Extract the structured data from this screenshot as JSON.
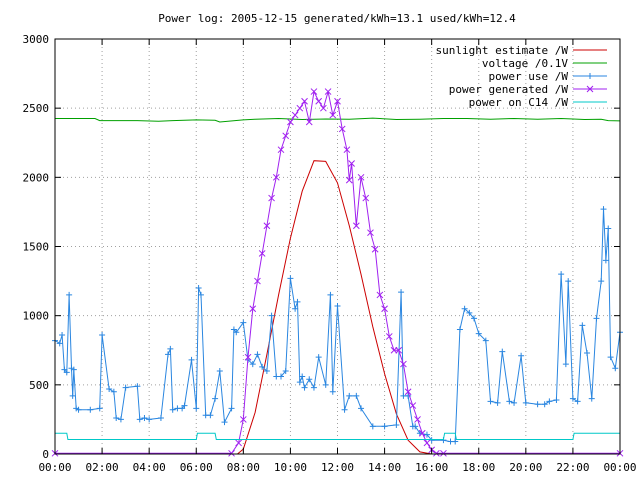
{
  "chart_data": {
    "type": "line",
    "title": "Power log: 2005-12-15 generated/kWh=13.1 used/kWh=12.4",
    "xlabel": "",
    "ylabel": "",
    "xlim": [
      0,
      24
    ],
    "ylim": [
      0,
      3000
    ],
    "grid": true,
    "legend_position": "top-right",
    "x_ticks": [
      "00:00",
      "02:00",
      "04:00",
      "06:00",
      "08:00",
      "10:00",
      "12:00",
      "14:00",
      "16:00",
      "18:00",
      "20:00",
      "22:00",
      "00:00"
    ],
    "y_ticks": [
      0,
      500,
      1000,
      1500,
      2000,
      2500,
      3000
    ],
    "series": [
      {
        "name": "sunlight estimate /W",
        "color": "#cc0000",
        "marker": "none",
        "x": [
          0,
          7.75,
          8.0,
          8.5,
          9.0,
          9.5,
          10.0,
          10.5,
          11.0,
          11.5,
          12.0,
          12.5,
          13.0,
          13.5,
          14.0,
          14.5,
          15.0,
          15.5,
          16.0,
          24
        ],
        "y": [
          0,
          0,
          35,
          300,
          720,
          1150,
          1560,
          1900,
          2120,
          2115,
          1960,
          1650,
          1300,
          920,
          580,
          290,
          100,
          15,
          0,
          0
        ]
      },
      {
        "name": "voltage /0.1V",
        "color": "#00a000",
        "marker": "none",
        "x": [
          0,
          1.7,
          1.9,
          3.5,
          4.4,
          5.0,
          6.0,
          6.8,
          7.0,
          8.0,
          8.5,
          9.5,
          10.5,
          11.5,
          12.5,
          13.5,
          14.5,
          15.5,
          16.5,
          17.5,
          18.5,
          19.5,
          20.5,
          21.5,
          22.5,
          23.2,
          23.5,
          24
        ],
        "y": [
          2425,
          2425,
          2410,
          2410,
          2405,
          2410,
          2415,
          2412,
          2400,
          2415,
          2420,
          2425,
          2418,
          2422,
          2420,
          2428,
          2418,
          2420,
          2425,
          2425,
          2420,
          2425,
          2420,
          2425,
          2418,
          2420,
          2410,
          2408
        ]
      },
      {
        "name": "power use /W",
        "color": "#2a86e0",
        "marker": "plus",
        "x": [
          0.0,
          0.2,
          0.3,
          0.4,
          0.5,
          0.6,
          0.7,
          0.75,
          0.8,
          0.9,
          1.0,
          1.5,
          1.9,
          2.0,
          2.3,
          2.5,
          2.6,
          2.8,
          3.0,
          3.5,
          3.6,
          3.8,
          4.0,
          4.5,
          4.8,
          4.9,
          5.0,
          5.2,
          5.4,
          5.5,
          5.8,
          6.0,
          6.1,
          6.2,
          6.4,
          6.6,
          6.8,
          7.0,
          7.2,
          7.5,
          7.6,
          7.7,
          8.0,
          8.2,
          8.4,
          8.6,
          8.8,
          9.0,
          9.2,
          9.4,
          9.6,
          9.8,
          10.0,
          10.2,
          10.3,
          10.4,
          10.5,
          10.6,
          10.8,
          11.0,
          11.2,
          11.5,
          11.7,
          11.8,
          12.0,
          12.3,
          12.5,
          12.8,
          13.0,
          13.5,
          14.0,
          14.5,
          14.7,
          14.8,
          15.0,
          15.2,
          15.3,
          15.5,
          15.8,
          16.0,
          16.5,
          16.8,
          17.0,
          17.2,
          17.4,
          17.6,
          17.8,
          18.0,
          18.3,
          18.5,
          18.8,
          19.0,
          19.3,
          19.5,
          19.8,
          20.0,
          20.5,
          20.8,
          21.0,
          21.3,
          21.5,
          21.7,
          21.8,
          22.0,
          22.2,
          22.4,
          22.6,
          22.8,
          23.0,
          23.2,
          23.3,
          23.4,
          23.5,
          23.6,
          23.8,
          24.0
        ],
        "y": [
          820,
          800,
          860,
          610,
          590,
          1150,
          620,
          420,
          610,
          330,
          320,
          320,
          330,
          860,
          470,
          450,
          260,
          250,
          480,
          490,
          250,
          260,
          250,
          260,
          720,
          760,
          320,
          330,
          330,
          350,
          680,
          330,
          1200,
          1150,
          280,
          280,
          400,
          600,
          230,
          330,
          900,
          880,
          950,
          680,
          650,
          720,
          630,
          600,
          1000,
          560,
          560,
          600,
          1270,
          1050,
          1100,
          520,
          560,
          480,
          540,
          480,
          700,
          500,
          1150,
          450,
          1070,
          320,
          420,
          420,
          330,
          200,
          200,
          210,
          1170,
          420,
          420,
          200,
          200,
          150,
          140,
          100,
          100,
          90,
          90,
          900,
          1050,
          1020,
          980,
          870,
          820,
          380,
          370,
          740,
          380,
          370,
          710,
          370,
          360,
          360,
          380,
          390,
          1300,
          650,
          1250,
          400,
          380,
          930,
          730,
          400,
          980,
          1250,
          1770,
          1400,
          1630,
          700,
          620,
          880
        ]
      },
      {
        "name": "power generated /W",
        "color": "#a020f0",
        "marker": "cross",
        "x": [
          0,
          7.5,
          7.8,
          8.0,
          8.2,
          8.4,
          8.6,
          8.8,
          9.0,
          9.2,
          9.4,
          9.6,
          9.8,
          10.0,
          10.2,
          10.4,
          10.6,
          10.8,
          11.0,
          11.2,
          11.4,
          11.6,
          11.8,
          12.0,
          12.2,
          12.4,
          12.5,
          12.6,
          12.8,
          13.0,
          13.2,
          13.4,
          13.6,
          13.8,
          14.0,
          14.2,
          14.4,
          14.6,
          14.8,
          15.0,
          15.2,
          15.4,
          15.6,
          15.8,
          16.0,
          16.2,
          16.5,
          24
        ],
        "y": [
          5,
          5,
          80,
          250,
          700,
          1050,
          1250,
          1450,
          1650,
          1850,
          2000,
          2200,
          2300,
          2400,
          2450,
          2500,
          2550,
          2400,
          2620,
          2550,
          2500,
          2620,
          2450,
          2550,
          2350,
          2200,
          1980,
          2100,
          1650,
          2000,
          1850,
          1600,
          1480,
          1150,
          1050,
          850,
          750,
          750,
          650,
          450,
          350,
          250,
          150,
          80,
          30,
          5,
          5,
          5
        ]
      },
      {
        "name": "power on C14 /W",
        "color": "#00c8c8",
        "marker": "none",
        "x": [
          0,
          0.5,
          0.55,
          6.0,
          6.05,
          6.8,
          6.85,
          8.0,
          8.05,
          16.5,
          16.55,
          17.0,
          17.05,
          22.0,
          22.05,
          24.0
        ],
        "y": [
          150,
          150,
          105,
          105,
          150,
          150,
          105,
          105,
          105,
          105,
          150,
          150,
          105,
          105,
          150,
          150
        ]
      }
    ]
  }
}
